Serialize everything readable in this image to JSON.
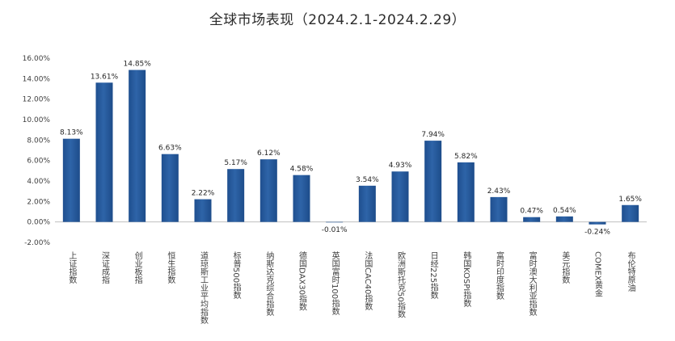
{
  "chart_data": {
    "type": "bar",
    "title": "全球市场表现（2024.2.1-2024.2.29）",
    "xlabel": "",
    "ylabel": "",
    "ylim": [
      -2,
      16
    ],
    "yticks": [
      "-2.00%",
      "0.00%",
      "2.00%",
      "4.00%",
      "6.00%",
      "8.00%",
      "10.00%",
      "12.00%",
      "14.00%",
      "16.00%"
    ],
    "grid": false,
    "legend": "none",
    "bar_color": "#2e64a8",
    "categories": [
      "上证指数",
      "深证成指",
      "创业板指",
      "恒生指数",
      "道琼斯工业平均指数",
      "标普500指数",
      "纳斯达克综合指数",
      "德国DAX30指数",
      "英国富时100指数",
      "法国CAC40指数",
      "欧洲斯托克50指数",
      "日经225指数",
      "韩国KOSPI指数",
      "富时印度指数",
      "富时澳大利亚指数",
      "美元指数",
      "COMEX黄金",
      "布伦特原油"
    ],
    "values": [
      8.13,
      13.61,
      14.85,
      6.63,
      2.22,
      5.17,
      6.12,
      4.58,
      -0.01,
      3.54,
      4.93,
      7.94,
      5.82,
      2.43,
      0.47,
      0.54,
      -0.24,
      1.65
    ],
    "data_labels": [
      "8.13%",
      "13.61%",
      "14.85%",
      "6.63%",
      "2.22%",
      "5.17%",
      "6.12%",
      "4.58%",
      "-0.01%",
      "3.54%",
      "4.93%",
      "7.94%",
      "5.82%",
      "2.43%",
      "0.47%",
      "0.54%",
      "-0.24%",
      "1.65%"
    ]
  }
}
